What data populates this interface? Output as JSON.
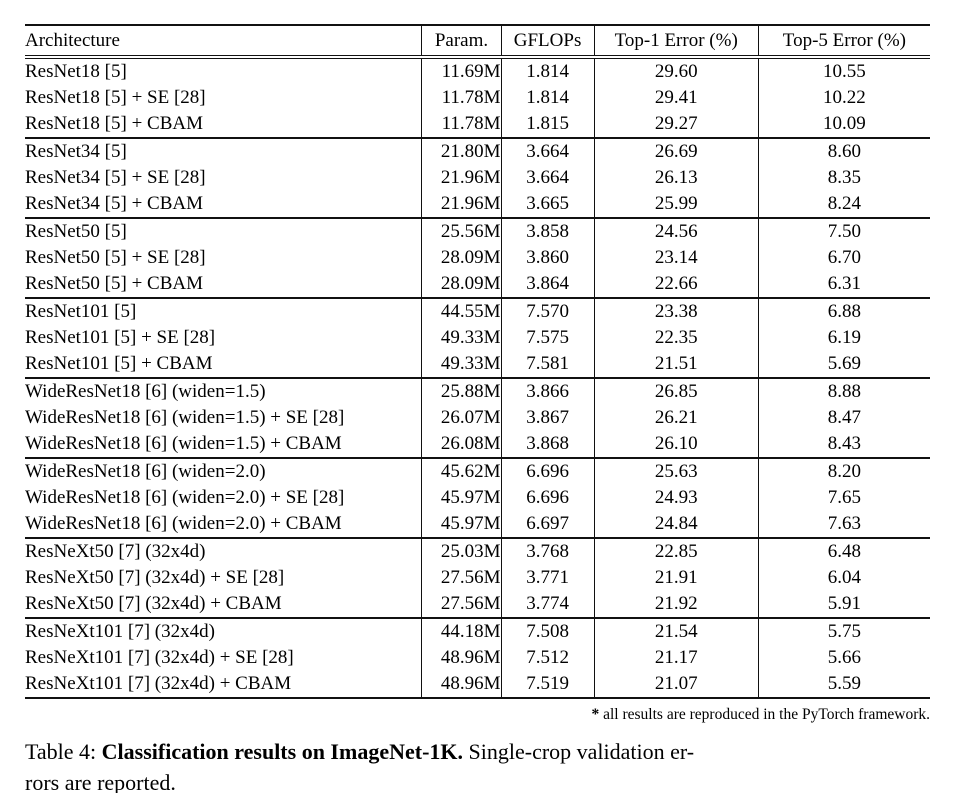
{
  "table": {
    "columns": [
      {
        "label": "Architecture"
      },
      {
        "label": "Param."
      },
      {
        "label": "GFLOPs"
      },
      {
        "label": "Top-1 Error (%)"
      },
      {
        "label": "Top-5 Error (%)"
      }
    ],
    "groups": [
      {
        "rows": [
          {
            "cells": [
              "ResNet18 [5]",
              "11.69M",
              "1.814",
              "29.60",
              "10.55"
            ],
            "bold": []
          },
          {
            "cells": [
              "ResNet18 [5] + SE [28]",
              "11.78M",
              "1.814",
              "29.41",
              "10.22"
            ],
            "bold": []
          },
          {
            "cells": [
              "ResNet18 [5] + CBAM",
              "11.78M",
              "1.815",
              "29.27",
              "10.09"
            ],
            "bold": [
              3,
              4
            ]
          }
        ]
      },
      {
        "rows": [
          {
            "cells": [
              "ResNet34 [5]",
              "21.80M",
              "3.664",
              "26.69",
              "8.60"
            ],
            "bold": []
          },
          {
            "cells": [
              "ResNet34 [5] + SE [28]",
              "21.96M",
              "3.664",
              "26.13",
              "8.35"
            ],
            "bold": []
          },
          {
            "cells": [
              "ResNet34 [5] + CBAM",
              "21.96M",
              "3.665",
              "25.99",
              "8.24"
            ],
            "bold": [
              3,
              4
            ]
          }
        ]
      },
      {
        "rows": [
          {
            "cells": [
              "ResNet50 [5]",
              "25.56M",
              "3.858",
              "24.56",
              "7.50"
            ],
            "bold": []
          },
          {
            "cells": [
              "ResNet50 [5] + SE [28]",
              "28.09M",
              "3.860",
              "23.14",
              "6.70"
            ],
            "bold": []
          },
          {
            "cells": [
              "ResNet50 [5] + CBAM",
              "28.09M",
              "3.864",
              "22.66",
              "6.31"
            ],
            "bold": [
              3,
              4
            ]
          }
        ]
      },
      {
        "rows": [
          {
            "cells": [
              "ResNet101 [5]",
              "44.55M",
              "7.570",
              "23.38",
              "6.88"
            ],
            "bold": []
          },
          {
            "cells": [
              "ResNet101 [5] + SE [28]",
              "49.33M",
              "7.575",
              "22.35",
              "6.19"
            ],
            "bold": []
          },
          {
            "cells": [
              "ResNet101 [5] + CBAM",
              "49.33M",
              "7.581",
              "21.51",
              "5.69"
            ],
            "bold": [
              3,
              4
            ]
          }
        ]
      },
      {
        "rows": [
          {
            "cells": [
              "WideResNet18 [6] (widen=1.5)",
              "25.88M",
              "3.866",
              "26.85",
              "8.88"
            ],
            "bold": []
          },
          {
            "cells": [
              "WideResNet18 [6] (widen=1.5) + SE [28]",
              "26.07M",
              "3.867",
              "26.21",
              "8.47"
            ],
            "bold": []
          },
          {
            "cells": [
              "WideResNet18 [6] (widen=1.5) + CBAM",
              "26.08M",
              "3.868",
              "26.10",
              "8.43"
            ],
            "bold": [
              3,
              4
            ]
          }
        ]
      },
      {
        "rows": [
          {
            "cells": [
              "WideResNet18 [6] (widen=2.0)",
              "45.62M",
              "6.696",
              "25.63",
              "8.20"
            ],
            "bold": []
          },
          {
            "cells": [
              "WideResNet18 [6] (widen=2.0) + SE [28]",
              "45.97M",
              "6.696",
              "24.93",
              "7.65"
            ],
            "bold": []
          },
          {
            "cells": [
              "WideResNet18 [6] (widen=2.0) + CBAM",
              "45.97M",
              "6.697",
              "24.84",
              "7.63"
            ],
            "bold": [
              3,
              4
            ]
          }
        ]
      },
      {
        "rows": [
          {
            "cells": [
              "ResNeXt50 [7] (32x4d)",
              "25.03M",
              "3.768",
              "22.85",
              "6.48"
            ],
            "bold": []
          },
          {
            "cells": [
              "ResNeXt50 [7] (32x4d) + SE [28]",
              "27.56M",
              "3.771",
              "21.91",
              "6.04"
            ],
            "bold": [
              3
            ]
          },
          {
            "cells": [
              "ResNeXt50 [7] (32x4d) + CBAM",
              "27.56M",
              "3.774",
              "21.92",
              "5.91"
            ],
            "bold": [
              4
            ]
          }
        ]
      },
      {
        "rows": [
          {
            "cells": [
              "ResNeXt101 [7] (32x4d)",
              "44.18M",
              "7.508",
              "21.54",
              "5.75"
            ],
            "bold": []
          },
          {
            "cells": [
              "ResNeXt101 [7] (32x4d) + SE [28]",
              "48.96M",
              "7.512",
              "21.17",
              "5.66"
            ],
            "bold": []
          },
          {
            "cells": [
              "ResNeXt101 [7] (32x4d) + CBAM",
              "48.96M",
              "7.519",
              "21.07",
              "5.59"
            ],
            "bold": [
              3,
              4
            ]
          }
        ]
      }
    ]
  },
  "footnote": {
    "marker": "*",
    "text": " all results are reproduced in the PyTorch framework."
  },
  "caption": {
    "prefix": "Table 4: ",
    "bold": "Classification results on ImageNet-1K.",
    "suffix_line1": " Single-crop validation er-",
    "suffix_line2": "rors are reported."
  }
}
